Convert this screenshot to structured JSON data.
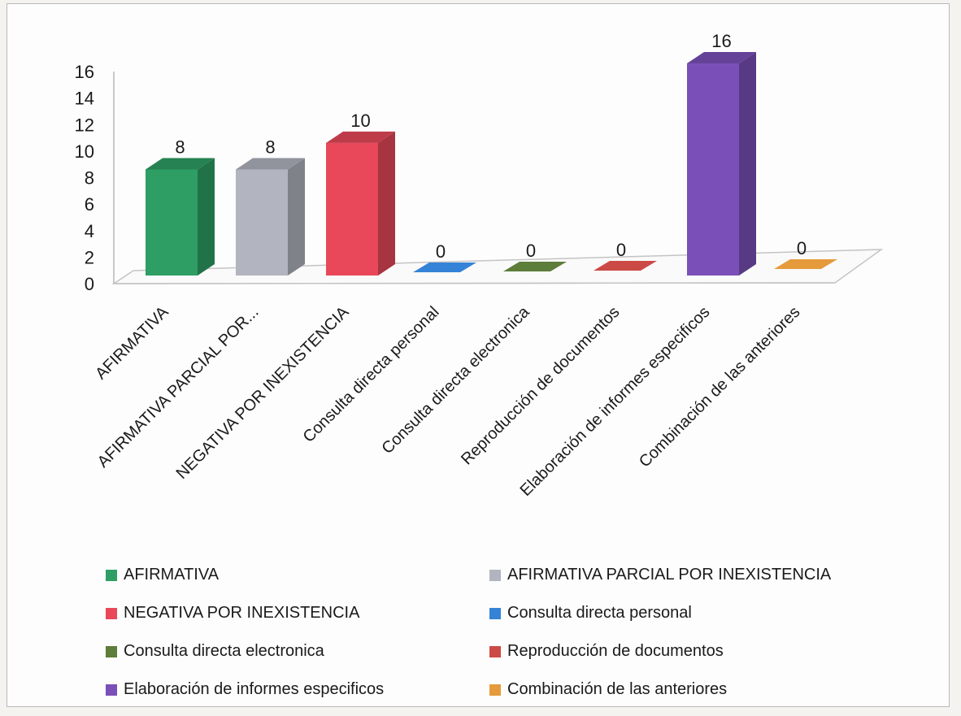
{
  "chart_data": {
    "type": "bar",
    "title": "",
    "xlabel": "",
    "ylabel": "",
    "ylim": [
      0,
      16
    ],
    "yticks": [
      0,
      2,
      4,
      6,
      8,
      10,
      12,
      14,
      16
    ],
    "three_d": true,
    "grid": false,
    "legend_position": "bottom",
    "categories": [
      "AFIRMATIVA",
      "AFIRMATIVA PARCIAL POR INEXISTENCIA",
      "NEGATIVA POR INEXISTENCIA",
      "Consulta directa personal",
      "Consulta directa electronica",
      "Reproducción de documentos",
      "Elaboración de informes especificos",
      "Combinación de las anteriores"
    ],
    "category_axis_labels": [
      "AFIRMATIVA",
      "AFIRMATIVA PARCIAL POR...",
      "NEGATIVA POR INEXISTENCIA",
      "Consulta directa personal",
      "Consulta directa electronica",
      "Reproducción de documentos",
      "Elaboración de informes especificos",
      "Combinación de las anteriores"
    ],
    "values": [
      8,
      8,
      10,
      0,
      0,
      0,
      16,
      0
    ],
    "colors": [
      "#2e9e64",
      "#b2b4bf",
      "#e8485a",
      "#3583d6",
      "#5d7d3a",
      "#cc4a46",
      "#7a50b8",
      "#e59a3c"
    ]
  }
}
